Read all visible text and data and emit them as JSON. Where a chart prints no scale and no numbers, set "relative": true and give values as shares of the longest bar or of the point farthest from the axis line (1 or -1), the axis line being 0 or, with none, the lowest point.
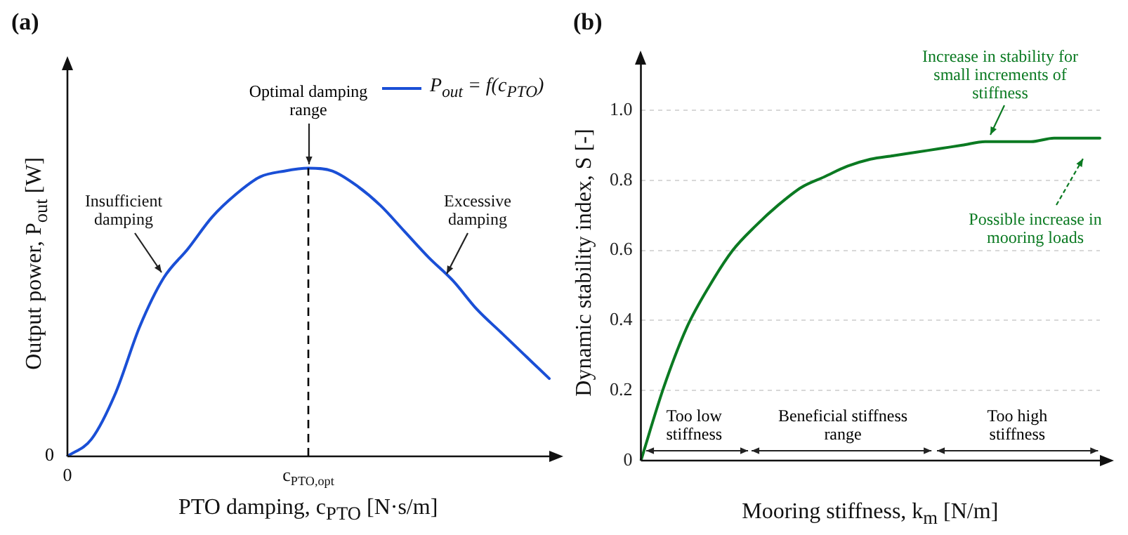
{
  "chart_data": [
    {
      "type": "line",
      "title": "(a)",
      "xlabel": "PTO damping, c$_{PTO}$ [N·s/m]",
      "ylabel": "Output power, P$_{out}$ [W]",
      "relative": true,
      "categories": [
        "0",
        null,
        null,
        null,
        null,
        null,
        null,
        null,
        null,
        null,
        "c$_{PTO,opt}$",
        null,
        null,
        null,
        null,
        null,
        null,
        null,
        null,
        null,
        null
      ],
      "series": [
        {
          "name": "P$_{out}$ = f(c$_{PTO}$)",
          "color": "#1a4fd6",
          "values": [
            0,
            0.06,
            0.22,
            0.45,
            0.62,
            0.72,
            0.83,
            0.91,
            0.97,
            0.99,
            1,
            0.99,
            0.94,
            0.87,
            0.78,
            0.69,
            0.61,
            0.51,
            0.43,
            0.35,
            0.27
          ]
        }
      ],
      "legend": "top right",
      "marker": "none",
      "line_style": "solid",
      "ref_lines": [
        {
          "axis": "x",
          "value": "c$_{PTO,opt}$",
          "color": "#000000",
          "line_style": "dashed"
        }
      ],
      "annotations": [
        {
          "text": "Optimal damping range",
          "x": "c$_{PTO,opt}$",
          "y": 1
        },
        "Insufficient damping",
        "Excessive damping",
        "0"
      ]
    },
    {
      "type": "line",
      "title": "(b)",
      "xlabel": "Mooring stiffness, k$_{m}$ [N/m]",
      "ylabel": "Dynamic stability index, S [-]",
      "categories": [
        null,
        null,
        null,
        null,
        null,
        null,
        null,
        null,
        null,
        null,
        null,
        null,
        null,
        null,
        null,
        null,
        null,
        null,
        null,
        null,
        null
      ],
      "series": [
        {
          "color": "#0b7a22",
          "values": [
            0,
            0.21,
            0.38,
            0.5,
            0.6,
            0.67,
            0.73,
            0.78,
            0.81,
            0.84,
            0.86,
            0.87,
            0.88,
            0.89,
            0.9,
            0.91,
            0.91,
            0.91,
            0.92,
            0.92,
            0.92
          ]
        }
      ],
      "ylim": [
        0,
        1.13
      ],
      "yticks": [
        0,
        0.2,
        0.4,
        0.6,
        0.8,
        {
          "value": 1,
          "label": "1.0"
        }
      ],
      "grid": "y",
      "marker": "none",
      "line_style": "solid",
      "annotations": [
        "Increase in stability for small increments of stiffness",
        "Possible increase in mooring loads",
        "Too low stiffness",
        "Beneficial stiffness range",
        "Too high stiffness"
      ]
    }
  ]
}
